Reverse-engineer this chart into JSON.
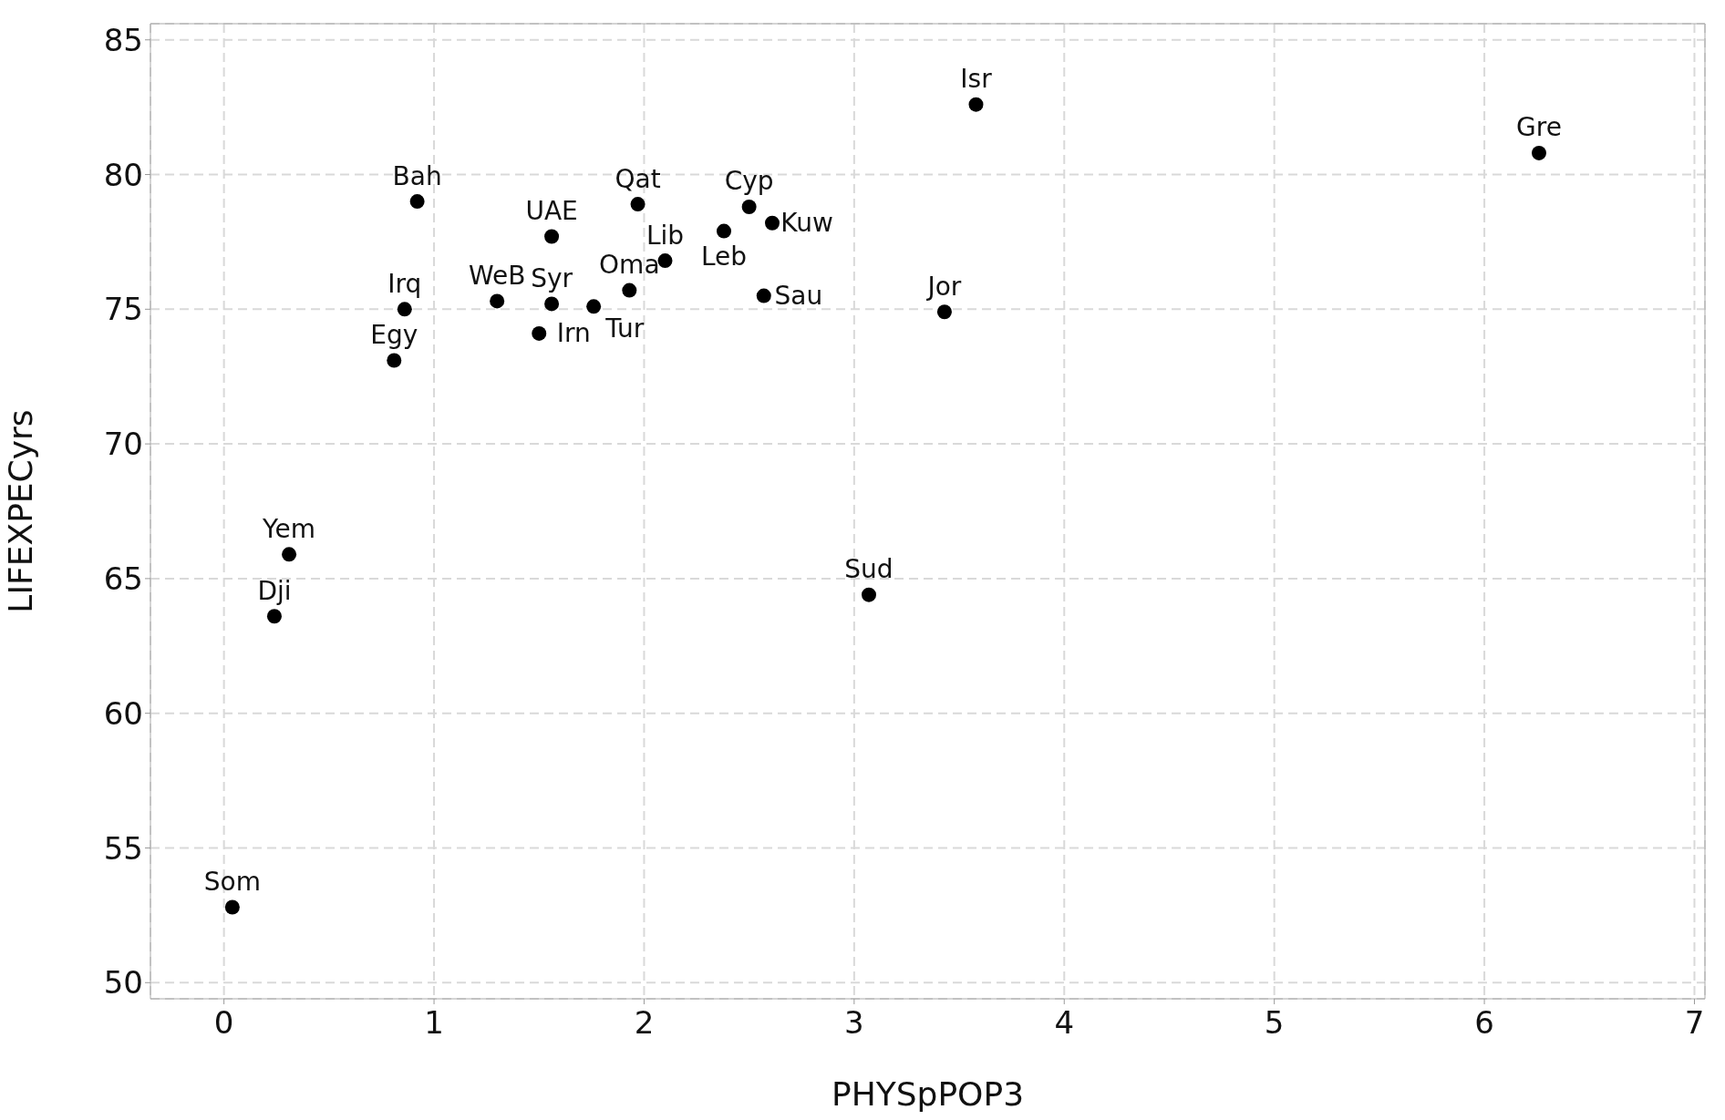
{
  "chart_data": {
    "type": "scatter",
    "xlabel": "PHYSpPOP3",
    "ylabel": "LIFEXPECyrs",
    "xlim": [
      -0.35,
      7.05
    ],
    "ylim": [
      49.4,
      85.6
    ],
    "xticks": [
      0,
      1,
      2,
      3,
      4,
      5,
      6,
      7
    ],
    "yticks": [
      50,
      55,
      60,
      65,
      70,
      75,
      80,
      85
    ],
    "grid": true,
    "marker": "circle",
    "series": [
      {
        "color": "#000000",
        "x": [
          0.04,
          0.24,
          0.31,
          0.81,
          0.86,
          0.92,
          1.3,
          1.5,
          1.56,
          1.56,
          1.76,
          1.93,
          1.97,
          2.1,
          2.38,
          2.5,
          2.61,
          2.57,
          3.07,
          3.43,
          3.58,
          6.26
        ],
        "values": [
          52.8,
          63.6,
          65.9,
          73.1,
          75.0,
          79.0,
          75.3,
          74.1,
          75.2,
          77.7,
          75.1,
          75.7,
          78.9,
          76.8,
          77.9,
          78.8,
          78.2,
          75.5,
          64.4,
          74.9,
          82.6,
          80.8
        ]
      }
    ],
    "annotations": [
      {
        "text": "Som",
        "x": 0.04,
        "y": 52.8
      },
      {
        "text": "Dji",
        "x": 0.24,
        "y": 63.6
      },
      {
        "text": "Yem",
        "x": 0.31,
        "y": 65.9
      },
      {
        "text": "Egy",
        "x": 0.81,
        "y": 73.1
      },
      {
        "text": "Irq",
        "x": 0.86,
        "y": 75.0
      },
      {
        "text": "Bah",
        "x": 0.92,
        "y": 79.0
      },
      {
        "text": "WeB",
        "x": 1.3,
        "y": 75.3
      },
      {
        "text": "Irn",
        "x": 1.5,
        "y": 74.1
      },
      {
        "text": "Syr",
        "x": 1.56,
        "y": 75.2
      },
      {
        "text": "UAE",
        "x": 1.56,
        "y": 77.7
      },
      {
        "text": "Tur",
        "x": 1.76,
        "y": 75.1
      },
      {
        "text": "Oma",
        "x": 1.93,
        "y": 75.7
      },
      {
        "text": "Qat",
        "x": 1.97,
        "y": 78.9
      },
      {
        "text": "Lib",
        "x": 2.1,
        "y": 76.8
      },
      {
        "text": "Leb",
        "x": 2.38,
        "y": 77.9
      },
      {
        "text": "Cyp",
        "x": 2.5,
        "y": 78.8
      },
      {
        "text": "Kuw",
        "x": 2.61,
        "y": 78.2
      },
      {
        "text": "Sau",
        "x": 2.57,
        "y": 75.5
      },
      {
        "text": "Sud",
        "x": 3.07,
        "y": 64.4
      },
      {
        "text": "Jor",
        "x": 3.43,
        "y": 74.9
      },
      {
        "text": "Isr",
        "x": 3.58,
        "y": 82.6
      },
      {
        "text": "Gre",
        "x": 6.26,
        "y": 80.8
      }
    ]
  }
}
